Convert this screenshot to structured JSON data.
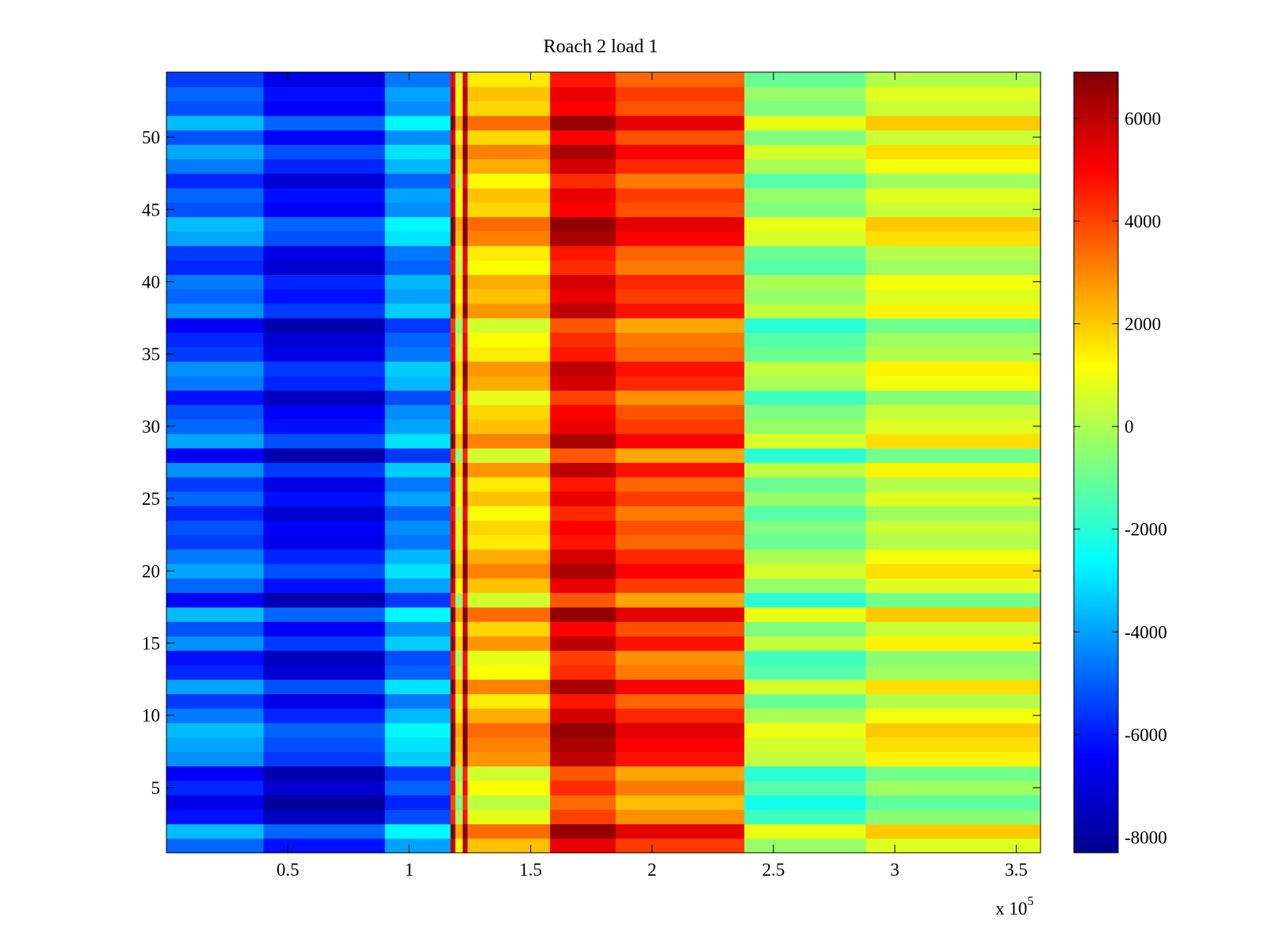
{
  "chart_data": {
    "type": "heatmap",
    "title": "Roach 2 load 1",
    "xlabel": "",
    "ylabel": "",
    "x_multiplier_label": "x 10",
    "x_multiplier_exponent": "5",
    "xlim": [
      0,
      3.6
    ],
    "ylim": [
      0.5,
      54.5
    ],
    "x_ticks": [
      0.5,
      1,
      1.5,
      2,
      2.5,
      3,
      3.5
    ],
    "x_tick_labels": [
      "0.5",
      "1",
      "1.5",
      "2",
      "2.5",
      "3",
      "3.5"
    ],
    "y_ticks": [
      5,
      10,
      15,
      20,
      25,
      30,
      35,
      40,
      45,
      50
    ],
    "y_tick_labels": [
      "5",
      "10",
      "15",
      "20",
      "25",
      "30",
      "35",
      "40",
      "45",
      "50"
    ],
    "rows": 54,
    "colorbar": {
      "colormap": "jet",
      "clim": [
        -8300,
        6900
      ],
      "ticks": [
        -8000,
        -6000,
        -4000,
        -2000,
        0,
        2000,
        4000,
        6000
      ],
      "tick_labels": [
        "-8000",
        "-6000",
        "-4000",
        "-2000",
        "0",
        "2000",
        "4000",
        "6000"
      ]
    },
    "column_segments": [
      {
        "x_start": 0.0,
        "x_end": 0.4,
        "mean_value": -5200
      },
      {
        "x_start": 0.4,
        "x_end": 0.9,
        "mean_value": -6500
      },
      {
        "x_start": 0.9,
        "x_end": 1.17,
        "mean_value": -4300
      },
      {
        "x_start": 1.17,
        "x_end": 1.19,
        "mean_value": 5500
      },
      {
        "x_start": 1.19,
        "x_end": 1.22,
        "mean_value": 900
      },
      {
        "x_start": 1.22,
        "x_end": 1.24,
        "mean_value": 5800
      },
      {
        "x_start": 1.24,
        "x_end": 1.58,
        "mean_value": 1800
      },
      {
        "x_start": 1.58,
        "x_end": 1.85,
        "mean_value": 5000
      },
      {
        "x_start": 1.85,
        "x_end": 2.38,
        "mean_value": 3800
      },
      {
        "x_start": 2.38,
        "x_end": 2.88,
        "mean_value": -700
      },
      {
        "x_start": 2.88,
        "x_end": 3.6,
        "mean_value": 400
      }
    ],
    "row_offsets": [
      0.6,
      1.0,
      0.2,
      0.0,
      0.3,
      0.1,
      0.8,
      0.9,
      1.0,
      0.7,
      0.4,
      0.9,
      0.3,
      0.2,
      0.8,
      0.5,
      1.0,
      0.1,
      0.6,
      0.9,
      0.7,
      0.4,
      0.5,
      0.3,
      0.6,
      0.4,
      0.8,
      0.1,
      0.9,
      0.6,
      0.5,
      0.2,
      0.7,
      0.8,
      0.4,
      0.3,
      0.1,
      0.8,
      0.6,
      0.7,
      0.3,
      0.4,
      0.9,
      1.0,
      0.5,
      0.6,
      0.3,
      0.7,
      0.9,
      0.5,
      1.0,
      0.5,
      0.6,
      0.4
    ]
  }
}
